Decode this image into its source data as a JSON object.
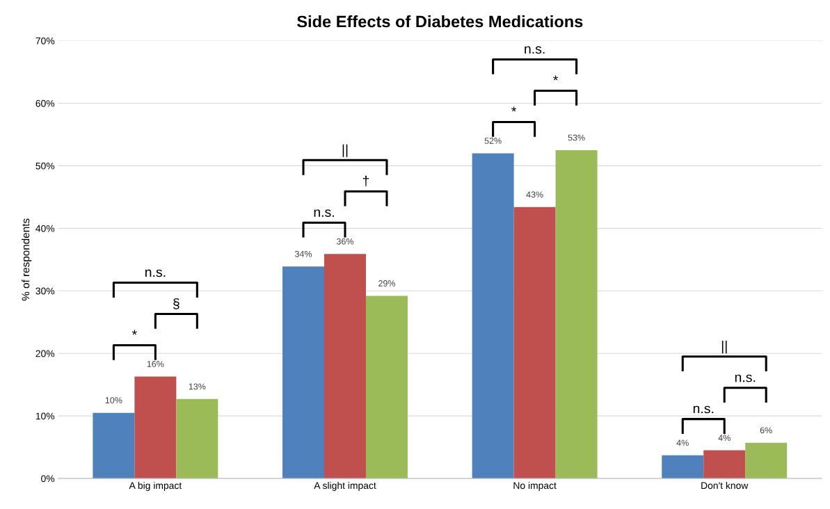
{
  "chart_data": {
    "type": "bar",
    "title": "Side Effects of Diabetes Medications",
    "ylabel": "% of respondents",
    "categories": [
      "A big impact",
      "A slight impact",
      "No impact",
      "Don't know"
    ],
    "series": [
      {
        "color": "#4f81bd",
        "values": [
          10.5,
          33.9,
          52.0,
          3.7
        ],
        "value_labels": [
          "10%",
          "34%",
          "52%",
          "4%"
        ]
      },
      {
        "color": "#c0504d",
        "values": [
          16.3,
          35.9,
          43.4,
          4.5
        ],
        "value_labels": [
          "16%",
          "36%",
          "43%",
          "4%"
        ]
      },
      {
        "color": "#9bbb59",
        "values": [
          12.7,
          29.2,
          52.5,
          5.7
        ],
        "value_labels": [
          "13%",
          "29%",
          "53%",
          "6%"
        ]
      }
    ],
    "ylim": [
      0,
      70
    ],
    "yticks": [
      {
        "value": 0,
        "label": "0%"
      },
      {
        "value": 10,
        "label": "10%"
      },
      {
        "value": 20,
        "label": "20%"
      },
      {
        "value": 30,
        "label": "30%"
      },
      {
        "value": 40,
        "label": "40%"
      },
      {
        "value": 50,
        "label": "50%"
      },
      {
        "value": 60,
        "label": "60%"
      },
      {
        "value": 70,
        "label": "70%"
      }
    ],
    "grid": "y",
    "annotations": [
      "*",
      "§",
      "n.s.",
      "n.s.",
      "†",
      "||",
      "*",
      "*",
      "n.s.",
      "n.s.",
      "n.s.",
      "||"
    ]
  }
}
